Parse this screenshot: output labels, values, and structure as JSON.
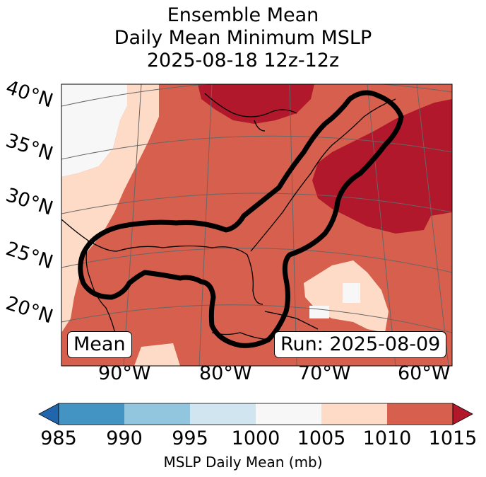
{
  "title": {
    "line1": "Ensemble Mean",
    "line2": "Daily Mean Minimum MSLP",
    "line3": "2025-08-18 12z-12z"
  },
  "map": {
    "lat_labels": [
      "40°N",
      "35°N",
      "30°N",
      "25°N",
      "20°N"
    ],
    "lon_labels": [
      "90°W",
      "80°W",
      "70°W",
      "60°W"
    ],
    "mean_label": "Mean",
    "run_label": "Run: 2025-08-09"
  },
  "colorbar": {
    "ticks": [
      "985",
      "990",
      "995",
      "1000",
      "1005",
      "1010",
      "1015"
    ],
    "label": "MSLP Daily Mean (mb)",
    "colors": [
      "#2166ac",
      "#4393c3",
      "#92c5de",
      "#d1e5f0",
      "#f7f7f7",
      "#fddbc7",
      "#d6604d",
      "#b2182b"
    ]
  }
}
